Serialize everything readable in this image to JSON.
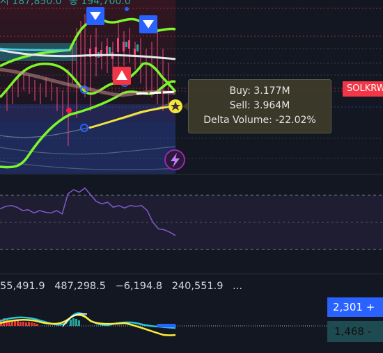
{
  "legend": {
    "partial_left": "시 187,850.0",
    "partial_right": "종 194,700.0"
  },
  "symbol_tag": "SOLKRW",
  "tooltip": {
    "buy": "Buy: 3.177M",
    "sell": "Sell: 3.964M",
    "delta": "Delta Volume: -22.02%"
  },
  "indicator_values": [
    "55,491.9",
    "487,298.5",
    "−6,194.8",
    "240,551.9",
    "..."
  ],
  "price_tags": {
    "top": "2,301 +",
    "bottom": "1,468 -"
  },
  "colors": {
    "background": "#131722",
    "bollinger": "#7cf52a",
    "candles": "#f0457a",
    "rsi": "#7e57c2",
    "macd_line": "#26c6da",
    "signal_line": "#ffeb3b",
    "sell_marker": "#2962ff",
    "buy_marker": "#f23645"
  },
  "chart_data": {
    "type": "line",
    "rsi_series": [
      {
        "x": 0,
        "y": 62
      },
      {
        "x": 1,
        "y": 65
      },
      {
        "x": 2,
        "y": 66
      },
      {
        "x": 3,
        "y": 64
      },
      {
        "x": 4,
        "y": 60
      },
      {
        "x": 5,
        "y": 61
      },
      {
        "x": 6,
        "y": 57
      },
      {
        "x": 7,
        "y": 60
      },
      {
        "x": 8,
        "y": 58
      },
      {
        "x": 9,
        "y": 57
      },
      {
        "x": 10,
        "y": 60
      },
      {
        "x": 11,
        "y": 56
      },
      {
        "x": 12,
        "y": 80
      },
      {
        "x": 13,
        "y": 85
      },
      {
        "x": 14,
        "y": 82
      },
      {
        "x": 15,
        "y": 87
      },
      {
        "x": 16,
        "y": 79
      },
      {
        "x": 17,
        "y": 71
      },
      {
        "x": 18,
        "y": 68
      },
      {
        "x": 19,
        "y": 70
      },
      {
        "x": 20,
        "y": 64
      },
      {
        "x": 21,
        "y": 66
      },
      {
        "x": 22,
        "y": 63
      },
      {
        "x": 23,
        "y": 66
      },
      {
        "x": 24,
        "y": 65
      },
      {
        "x": 25,
        "y": 66
      },
      {
        "x": 26,
        "y": 60
      },
      {
        "x": 27,
        "y": 46
      },
      {
        "x": 28,
        "y": 38
      },
      {
        "x": 29,
        "y": 37
      },
      {
        "x": 30,
        "y": 34
      },
      {
        "x": 31,
        "y": 30
      }
    ],
    "markers": [
      {
        "type": "sell",
        "label": "▼"
      },
      {
        "type": "sell",
        "label": "▼"
      },
      {
        "type": "buy",
        "label": "▲"
      }
    ]
  }
}
